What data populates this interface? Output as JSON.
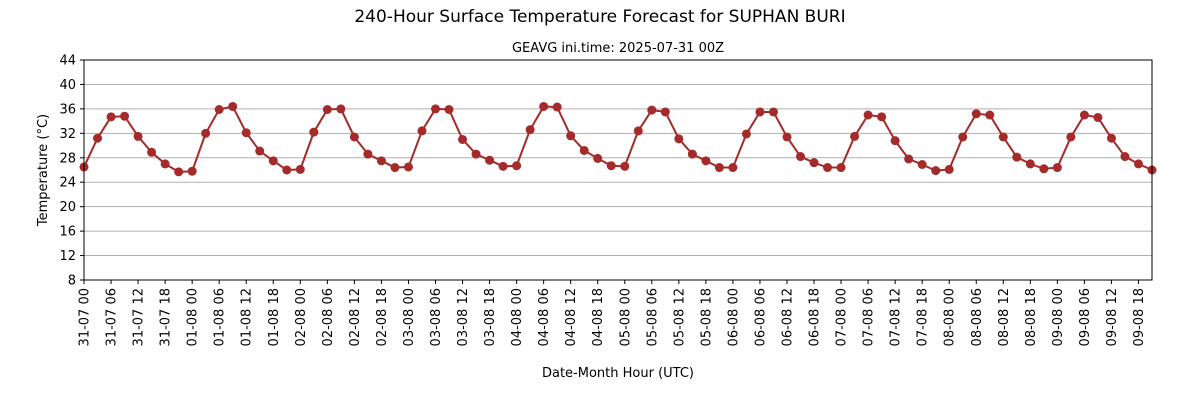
{
  "chart_data": {
    "type": "line",
    "title": "240-Hour Surface Temperature Forecast for SUPHAN BURI",
    "subtitle": "GEAVG ini.time: 2025-07-31 00Z",
    "xlabel": "Date-Month Hour (UTC)",
    "ylabel": "Temperature (°C)",
    "ylim": [
      8,
      44
    ],
    "yticks": [
      8,
      12,
      16,
      20,
      24,
      28,
      32,
      36,
      40,
      44
    ],
    "grid": "horizontal",
    "line_color": "#a52a2a",
    "x_tick_labels": [
      "31-07 00",
      "31-07 06",
      "31-07 12",
      "31-07 18",
      "01-08 00",
      "01-08 06",
      "01-08 12",
      "01-08 18",
      "02-08 00",
      "02-08 06",
      "02-08 12",
      "02-08 18",
      "03-08 00",
      "03-08 06",
      "03-08 12",
      "03-08 18",
      "04-08 00",
      "04-08 06",
      "04-08 12",
      "04-08 18",
      "05-08 00",
      "05-08 06",
      "05-08 12",
      "05-08 18",
      "06-08 00",
      "06-08 06",
      "06-08 12",
      "06-08 18",
      "07-08 00",
      "07-08 06",
      "07-08 12",
      "07-08 18",
      "08-08 00",
      "08-08 06",
      "08-08 12",
      "08-08 18",
      "09-08 00",
      "09-08 06",
      "09-08 12",
      "09-08 18"
    ],
    "values": [
      26.5,
      31.2,
      34.7,
      34.8,
      31.5,
      28.9,
      27.0,
      25.7,
      25.8,
      32.0,
      35.9,
      36.4,
      32.1,
      29.1,
      27.5,
      26.0,
      26.1,
      32.2,
      35.9,
      36.0,
      31.4,
      28.6,
      27.5,
      26.4,
      26.5,
      32.4,
      36.0,
      35.9,
      31.0,
      28.6,
      27.6,
      26.6,
      26.7,
      32.6,
      36.4,
      36.3,
      31.6,
      29.2,
      27.9,
      26.7,
      26.6,
      32.4,
      35.8,
      35.5,
      31.1,
      28.6,
      27.5,
      26.4,
      26.4,
      31.9,
      35.5,
      35.5,
      31.4,
      28.2,
      27.2,
      26.4,
      26.4,
      31.5,
      35.0,
      34.7,
      30.8,
      27.8,
      26.9,
      25.9,
      26.1,
      31.4,
      35.2,
      35.0,
      31.4,
      28.1,
      27.0,
      26.2,
      26.4,
      31.4,
      35.0,
      34.6,
      31.2,
      28.2,
      27.0,
      26.0
    ]
  }
}
